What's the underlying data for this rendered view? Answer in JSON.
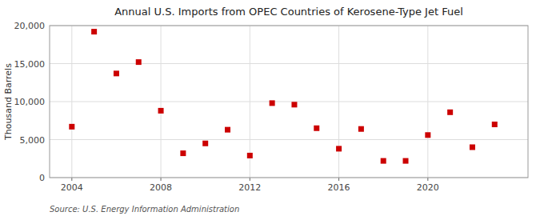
{
  "chart_data": {
    "type": "scatter",
    "title": "Annual U.S. Imports from OPEC Countries of Kerosene-Type Jet Fuel",
    "ylabel": "Thousand Barrels",
    "annotations": [
      "Source: U.S. Energy Information Administration"
    ],
    "x": [
      2004,
      2005,
      2006,
      2007,
      2008,
      2009,
      2010,
      2011,
      2012,
      2013,
      2014,
      2015,
      2016,
      2017,
      2018,
      2019,
      2020,
      2021,
      2022,
      2023
    ],
    "values": [
      6700,
      19200,
      13700,
      15200,
      8800,
      3200,
      4500,
      6300,
      2900,
      9800,
      9600,
      6500,
      3800,
      6400,
      2200,
      2200,
      5600,
      8600,
      4000,
      7000
    ],
    "color": "#cc0000",
    "marker": "square",
    "xlim": [
      2003.0,
      2024.5
    ],
    "xticks": [
      2004,
      2008,
      2012,
      2016,
      2020
    ],
    "ylim": [
      0,
      20000
    ],
    "yticks": [
      0,
      {
        "value": 5000,
        "label": "5,000"
      },
      {
        "value": 10000,
        "label": "10,000"
      },
      {
        "value": 15000,
        "label": "15,000"
      },
      {
        "value": 20000,
        "label": "20,000"
      }
    ],
    "grid": true
  }
}
